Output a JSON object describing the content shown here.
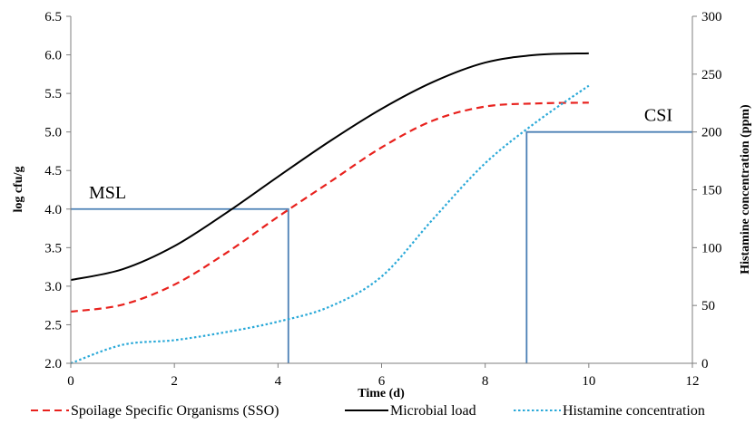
{
  "chart_data": {
    "type": "line",
    "xlabel": "Time (d)",
    "ylabel_left": "log cfu/g",
    "ylabel_right": "Histamine concentration (ppm)",
    "xlim": [
      0,
      12
    ],
    "ylim_left": [
      2.0,
      6.5
    ],
    "ylim_right": [
      0,
      300
    ],
    "x_ticks": [
      "0",
      "2",
      "4",
      "6",
      "8",
      "10",
      "12"
    ],
    "y_left_ticks": [
      "2.0",
      "2.5",
      "3.0",
      "3.5",
      "4.0",
      "4.5",
      "5.0",
      "5.5",
      "6.0",
      "6.5"
    ],
    "y_right_ticks": [
      "0",
      "50",
      "100",
      "150",
      "200",
      "250",
      "300"
    ],
    "grid": false,
    "legend_position": "bottom",
    "series": [
      {
        "name": "Spoilage Specific Organisms (SSO)",
        "axis": "left",
        "style": "dashed",
        "color": "#e8211d",
        "x": [
          0,
          1,
          2,
          3,
          4,
          5,
          6,
          7,
          8,
          9,
          10
        ],
        "y": [
          2.67,
          2.76,
          3.02,
          3.43,
          3.9,
          4.35,
          4.8,
          5.15,
          5.33,
          5.37,
          5.38
        ]
      },
      {
        "name": "Microbial load",
        "axis": "left",
        "style": "solid",
        "color": "#000000",
        "x": [
          0,
          1,
          2,
          3,
          4,
          5,
          6,
          7,
          8,
          9,
          10
        ],
        "y": [
          3.08,
          3.22,
          3.52,
          3.95,
          4.42,
          4.88,
          5.3,
          5.65,
          5.9,
          6.0,
          6.02
        ]
      },
      {
        "name": "Histamine concentration",
        "axis": "right",
        "style": "dotted",
        "color": "#2aa9d8",
        "x": [
          0,
          1,
          2,
          3,
          4,
          5,
          6,
          7,
          8,
          9,
          10
        ],
        "y": [
          0,
          16,
          20,
          27,
          36,
          49,
          75,
          125,
          173,
          209,
          240
        ]
      }
    ],
    "reference_lines": [
      {
        "label": "MSL",
        "axis": "left",
        "value": 4.0,
        "x": 4.2,
        "color": "#4a7fb5"
      },
      {
        "label": "CSI",
        "axis": "right",
        "value": 200,
        "x": 8.8,
        "color": "#4a7fb5"
      }
    ]
  }
}
